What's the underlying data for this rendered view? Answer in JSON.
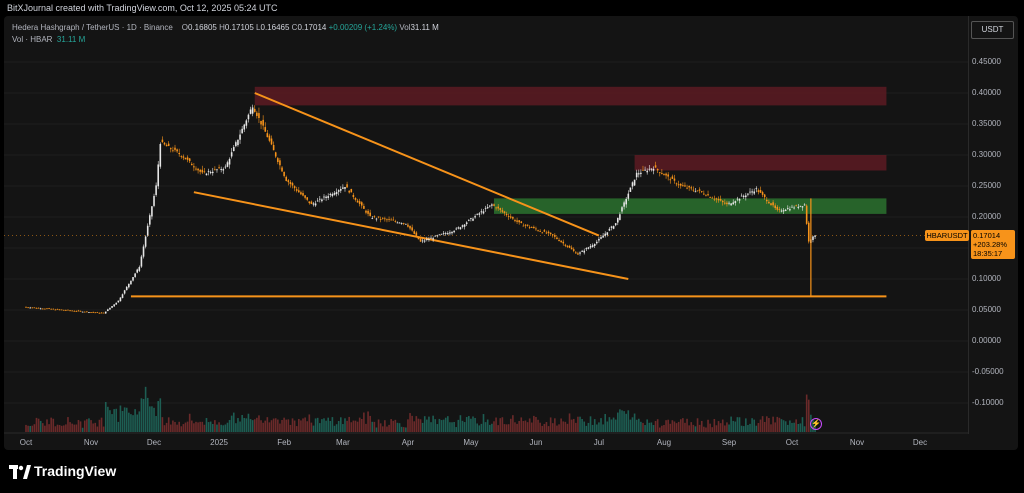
{
  "header": {
    "created_text": "BitXJournal created with TradingView.com, Oct 12, 2025 05:24 UTC"
  },
  "legend": {
    "symbol": "Hedera Hashgraph / TetherUS · 1D · Binance",
    "open_label": "O",
    "open": "0.16805",
    "high_label": "H",
    "high": "0.17105",
    "low_label": "L",
    "low": "0.16465",
    "close_label": "C",
    "close": "0.17014",
    "change": "+0.00209 (+1.24%)",
    "vol_label": "Vol",
    "vol": "31.11 M",
    "vol_series_label": "Vol · HBAR",
    "vol_series_value": "31.11 M"
  },
  "axis": {
    "currency": "USDT"
  },
  "price_tag": {
    "symbol": "HBARUSDT",
    "price": "0.17014",
    "change": "+203.28%",
    "countdown": "18:35:17"
  },
  "footer": {
    "brand": "TradingView"
  },
  "colors": {
    "up": "#e6e6e6",
    "down": "#f7931a",
    "support": "#f7931a",
    "resistance_zone": "#5c1a22",
    "support_zone": "#2e7d32"
  },
  "chart_data": {
    "type": "candlestick",
    "y_ticks": [
      0.45,
      0.4,
      0.35,
      0.3,
      0.25,
      0.2,
      0.15,
      0.1,
      0.05,
      0.0,
      -0.05,
      -0.1
    ],
    "y_tick_labels": [
      "0.45000",
      "0.40000",
      "0.35000",
      "0.30000",
      "0.25000",
      "0.20000",
      "0.15000",
      "0.10000",
      "0.05000",
      "0.00000",
      "-0.05000",
      "-0.10000"
    ],
    "x_labels": [
      "Oct",
      "Nov",
      "Dec",
      "2025",
      "Feb",
      "Mar",
      "Apr",
      "May",
      "Jun",
      "Jul",
      "Aug",
      "Sep",
      "Oct",
      "Nov",
      "Dec"
    ],
    "price_path": [
      [
        "2024-10-01",
        0.055
      ],
      [
        "2024-10-20",
        0.05
      ],
      [
        "2024-11-08",
        0.045
      ],
      [
        "2024-11-15",
        0.065
      ],
      [
        "2024-11-25",
        0.12
      ],
      [
        "2024-12-03",
        0.25
      ],
      [
        "2024-12-05",
        0.32
      ],
      [
        "2024-12-15",
        0.3
      ],
      [
        "2024-12-25",
        0.27
      ],
      [
        "2025-01-05",
        0.28
      ],
      [
        "2025-01-18",
        0.38
      ],
      [
        "2025-01-25",
        0.33
      ],
      [
        "2025-02-03",
        0.26
      ],
      [
        "2025-02-15",
        0.22
      ],
      [
        "2025-03-03",
        0.25
      ],
      [
        "2025-03-15",
        0.2
      ],
      [
        "2025-04-01",
        0.19
      ],
      [
        "2025-04-08",
        0.16
      ],
      [
        "2025-04-25",
        0.18
      ],
      [
        "2025-05-12",
        0.22
      ],
      [
        "2025-05-25",
        0.19
      ],
      [
        "2025-06-10",
        0.17
      ],
      [
        "2025-06-22",
        0.14
      ],
      [
        "2025-07-01",
        0.16
      ],
      [
        "2025-07-10",
        0.19
      ],
      [
        "2025-07-20",
        0.27
      ],
      [
        "2025-07-28",
        0.28
      ],
      [
        "2025-08-10",
        0.25
      ],
      [
        "2025-08-20",
        0.24
      ],
      [
        "2025-09-01",
        0.22
      ],
      [
        "2025-09-15",
        0.245
      ],
      [
        "2025-09-25",
        0.21
      ],
      [
        "2025-10-08",
        0.22
      ],
      [
        "2025-10-10",
        0.16
      ],
      [
        "2025-10-12",
        0.17
      ]
    ],
    "flash_low": 0.072,
    "horizontal_support": 0.072,
    "trendline_upper": [
      [
        "2025-01-18",
        0.4
      ],
      [
        "2025-07-01",
        0.17
      ]
    ],
    "trendline_lower": [
      [
        "2024-12-20",
        0.24
      ],
      [
        "2025-07-15",
        0.1
      ]
    ],
    "resistance_zone_top": {
      "from": "2025-01-18",
      "to": "2025-11-15",
      "low": 0.38,
      "high": 0.41
    },
    "resistance_zone_mid": {
      "from": "2025-07-18",
      "to": "2025-11-15",
      "low": 0.275,
      "high": 0.3
    },
    "support_zone": {
      "from": "2025-05-12",
      "to": "2025-11-15",
      "low": 0.205,
      "high": 0.23
    },
    "last_price": 0.17014
  }
}
